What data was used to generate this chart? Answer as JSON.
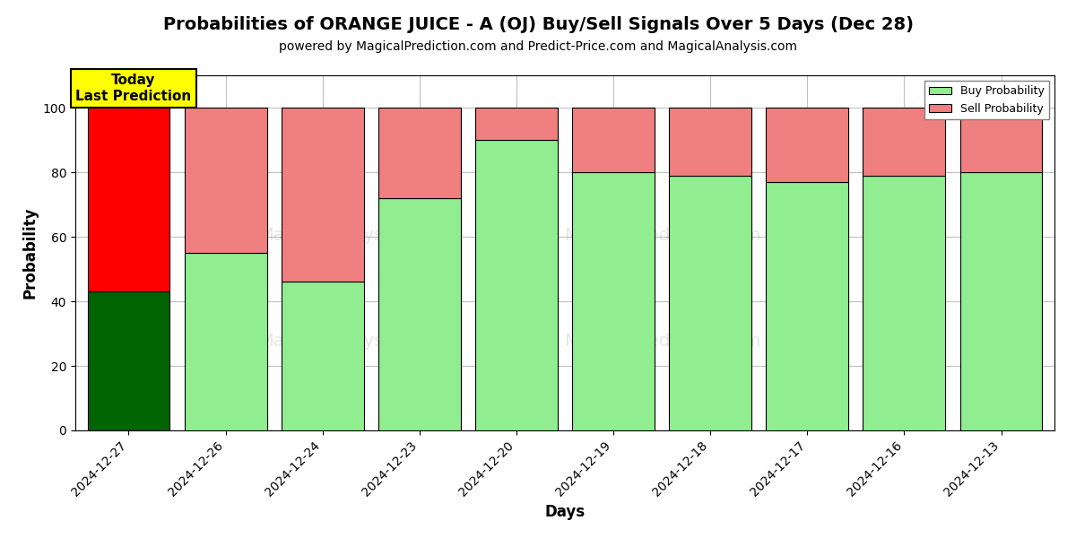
{
  "title": "Probabilities of ORANGE JUICE - A (OJ) Buy/Sell Signals Over 5 Days (Dec 28)",
  "subtitle": "powered by MagicalPrediction.com and Predict-Price.com and MagicalAnalysis.com",
  "xlabel": "Days",
  "ylabel": "Probability",
  "days": [
    "2024-12-27",
    "2024-12-26",
    "2024-12-24",
    "2024-12-23",
    "2024-12-20",
    "2024-12-19",
    "2024-12-18",
    "2024-12-17",
    "2024-12-16",
    "2024-12-13"
  ],
  "buy_values": [
    43,
    55,
    46,
    72,
    90,
    80,
    79,
    77,
    79,
    80
  ],
  "sell_values": [
    57,
    45,
    54,
    28,
    10,
    20,
    21,
    23,
    21,
    20
  ],
  "buy_colors": [
    "#006400",
    "#90EE90",
    "#90EE90",
    "#90EE90",
    "#90EE90",
    "#90EE90",
    "#90EE90",
    "#90EE90",
    "#90EE90",
    "#90EE90"
  ],
  "sell_colors": [
    "#FF0000",
    "#F08080",
    "#F08080",
    "#F08080",
    "#F08080",
    "#F08080",
    "#F08080",
    "#F08080",
    "#F08080",
    "#F08080"
  ],
  "legend_buy_color": "#90EE90",
  "legend_sell_color": "#F08080",
  "today_box_color": "#FFFF00",
  "today_label": "Today\nLast Prediction",
  "ylim": [
    0,
    110
  ],
  "yticks": [
    0,
    20,
    40,
    60,
    80,
    100
  ],
  "dashed_line_y": 110,
  "background_color": "#ffffff",
  "grid_color": "#c0c0c0",
  "title_fontsize": 14,
  "subtitle_fontsize": 10,
  "axis_label_fontsize": 12
}
